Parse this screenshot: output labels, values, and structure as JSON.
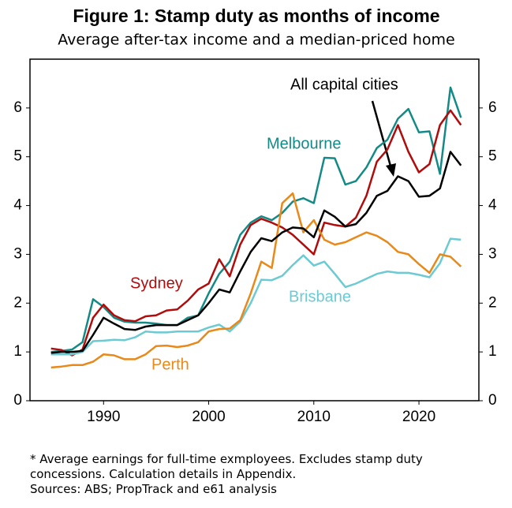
{
  "chart_data": {
    "type": "line",
    "title": "Figure 1: Stamp duty as months of income",
    "subtitle": "Average after-tax income and a median-priced home",
    "x": [
      1985,
      1986,
      1987,
      1988,
      1989,
      1990,
      1991,
      1992,
      1993,
      1994,
      1995,
      1996,
      1997,
      1998,
      1999,
      2000,
      2001,
      2002,
      2003,
      2004,
      2005,
      2006,
      2007,
      2008,
      2009,
      2010,
      2011,
      2012,
      2013,
      2014,
      2015,
      2016,
      2017,
      2018,
      2019,
      2020,
      2021,
      2022,
      2023,
      2024
    ],
    "series": [
      {
        "name": "Melbourne",
        "color": "#148a86",
        "values": [
          1.0,
          1.02,
          1.05,
          1.2,
          2.08,
          1.92,
          1.7,
          1.62,
          1.6,
          1.6,
          1.58,
          1.55,
          1.55,
          1.7,
          1.75,
          2.2,
          2.6,
          2.85,
          3.4,
          3.65,
          3.78,
          3.7,
          3.85,
          4.08,
          4.15,
          4.05,
          4.98,
          4.97,
          4.43,
          4.5,
          4.78,
          5.18,
          5.35,
          5.78,
          5.98,
          5.5,
          5.52,
          4.65,
          6.42,
          5.8
        ]
      },
      {
        "name": "Sydney",
        "color": "#b00c0c",
        "values": [
          1.07,
          1.04,
          0.93,
          1.05,
          1.7,
          1.97,
          1.75,
          1.65,
          1.63,
          1.73,
          1.75,
          1.85,
          1.87,
          2.05,
          2.28,
          2.4,
          2.9,
          2.55,
          3.2,
          3.6,
          3.73,
          3.65,
          3.55,
          3.4,
          3.2,
          3.0,
          3.65,
          3.6,
          3.57,
          3.75,
          4.2,
          4.9,
          5.15,
          5.65,
          5.1,
          4.68,
          4.85,
          5.65,
          5.95,
          5.65
        ]
      },
      {
        "name": "Brisbane",
        "color": "#6ccad3",
        "values": [
          0.95,
          0.95,
          0.95,
          1.0,
          1.22,
          1.23,
          1.25,
          1.24,
          1.3,
          1.42,
          1.4,
          1.4,
          1.42,
          1.42,
          1.42,
          1.5,
          1.56,
          1.42,
          1.62,
          2.0,
          2.48,
          2.47,
          2.56,
          2.78,
          2.98,
          2.77,
          2.85,
          2.6,
          2.33,
          2.4,
          2.5,
          2.6,
          2.65,
          2.62,
          2.62,
          2.58,
          2.53,
          2.82,
          3.32,
          3.3
        ]
      },
      {
        "name": "Perth",
        "color": "#e8891a",
        "values": [
          0.68,
          0.7,
          0.73,
          0.73,
          0.8,
          0.95,
          0.93,
          0.85,
          0.85,
          0.95,
          1.12,
          1.13,
          1.1,
          1.13,
          1.2,
          1.42,
          1.47,
          1.48,
          1.65,
          2.2,
          2.85,
          2.72,
          4.05,
          4.25,
          3.45,
          3.7,
          3.3,
          3.2,
          3.25,
          3.35,
          3.45,
          3.38,
          3.25,
          3.05,
          3.0,
          2.8,
          2.62,
          3.0,
          2.95,
          2.75
        ]
      },
      {
        "name": "All capital cities",
        "color": "#000000",
        "values": [
          0.98,
          1.0,
          1.0,
          1.02,
          1.35,
          1.7,
          1.58,
          1.47,
          1.45,
          1.52,
          1.55,
          1.55,
          1.55,
          1.65,
          1.75,
          2.0,
          2.28,
          2.22,
          2.65,
          3.05,
          3.33,
          3.27,
          3.45,
          3.55,
          3.53,
          3.35,
          3.9,
          3.77,
          3.57,
          3.62,
          3.85,
          4.2,
          4.3,
          4.6,
          4.5,
          4.18,
          4.2,
          4.35,
          5.1,
          4.82
        ]
      }
    ],
    "xlim": [
      1983,
      2025.7
    ],
    "xticks": [
      1990,
      2000,
      2010,
      2020
    ],
    "ylim": [
      0,
      7
    ],
    "yticks": [
      0,
      1,
      2,
      3,
      4,
      5,
      6
    ],
    "y2lim": [
      0,
      7
    ],
    "y2ticks": [
      0,
      1,
      2,
      3,
      4,
      5,
      6
    ],
    "footnotes": [
      "* Average earnings for full-time exmployees. Excludes stamp duty",
      "concessions. Calculation details in Appendix.",
      "Sources: ABS; PropTrack and e61 analysis"
    ]
  }
}
